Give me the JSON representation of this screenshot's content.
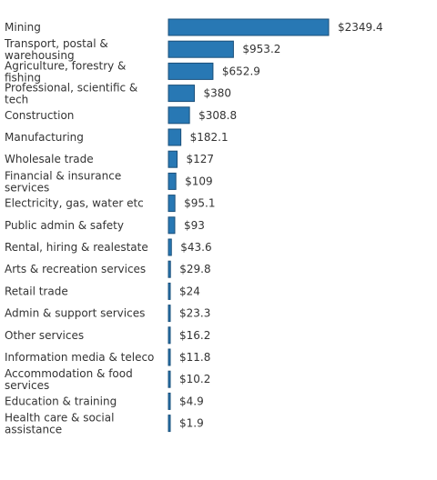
{
  "chart_data": {
    "type": "bar",
    "orientation": "horizontal",
    "categories": [
      "Mining",
      "Transport, postal & warehousing",
      "Agriculture, forestry & fishing",
      "Professional, scientific & tech",
      "Construction",
      "Manufacturing",
      "Wholesale trade",
      "Financial & insurance services",
      "Electricity, gas, water etc",
      "Public admin & safety",
      "Rental, hiring & realestate",
      "Arts & recreation services",
      "Retail trade",
      "Admin & support services",
      "Other services",
      "Information media & teleco",
      "Accommodation & food services",
      "Education & training",
      "Health care & social assistance"
    ],
    "values": [
      2349.4,
      953.2,
      652.9,
      380,
      308.8,
      182.1,
      127,
      109,
      95.1,
      93,
      43.6,
      29.8,
      24,
      23.3,
      16.2,
      11.8,
      10.2,
      4.9,
      1.9
    ],
    "value_labels": [
      "$2349.4",
      "$953.2",
      "$652.9",
      "$380",
      "$308.8",
      "$182.1",
      "$127",
      "$109",
      "$95.1",
      "$93",
      "$43.6",
      "$29.8",
      "$24",
      "$23.3",
      "$16.2",
      "$11.8",
      "$10.2",
      "$4.9",
      "$1.9"
    ],
    "xlim": [
      0,
      2349.4
    ],
    "grid": false,
    "legend": "none",
    "bar_color": "#2878b4",
    "bar_edge_color": "#1a4f7a"
  }
}
